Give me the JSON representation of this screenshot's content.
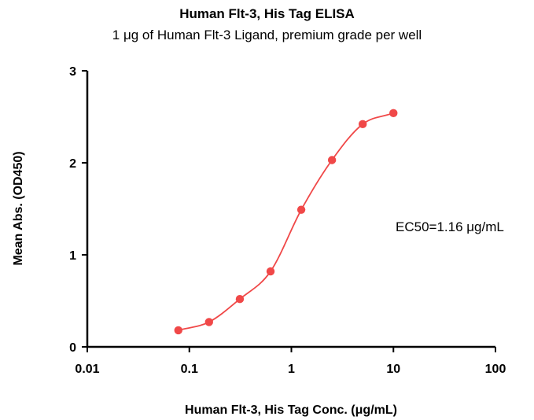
{
  "chart_data": {
    "type": "scatter",
    "title": "Human Flt-3, His Tag ELISA",
    "subtitle": "1 μg of Human Flt-3 Ligand, premium grade per well",
    "xlabel": "Human Flt-3, His Tag Conc. (μg/mL)",
    "ylabel": "Mean Abs. (OD450)",
    "x_scale": "log",
    "xlim": [
      0.01,
      100
    ],
    "ylim": [
      0,
      3
    ],
    "x_ticks": [
      0.01,
      0.1,
      1,
      10,
      100
    ],
    "x_tick_labels": [
      "0.01",
      "0.1",
      "1",
      "10",
      "100"
    ],
    "y_ticks": [
      0,
      1,
      2,
      3
    ],
    "y_tick_labels": [
      "0",
      "1",
      "2",
      "3"
    ],
    "grid": false,
    "series": [
      {
        "color": "#f04848",
        "x": [
          0.078,
          0.156,
          0.3125,
          0.625,
          1.25,
          2.5,
          5,
          10
        ],
        "y": [
          0.18,
          0.27,
          0.52,
          0.82,
          1.49,
          2.03,
          2.42,
          2.54
        ],
        "fit": "4PL"
      }
    ],
    "annotations": [
      {
        "text": "EC50=1.16 μg/mL"
      }
    ]
  }
}
